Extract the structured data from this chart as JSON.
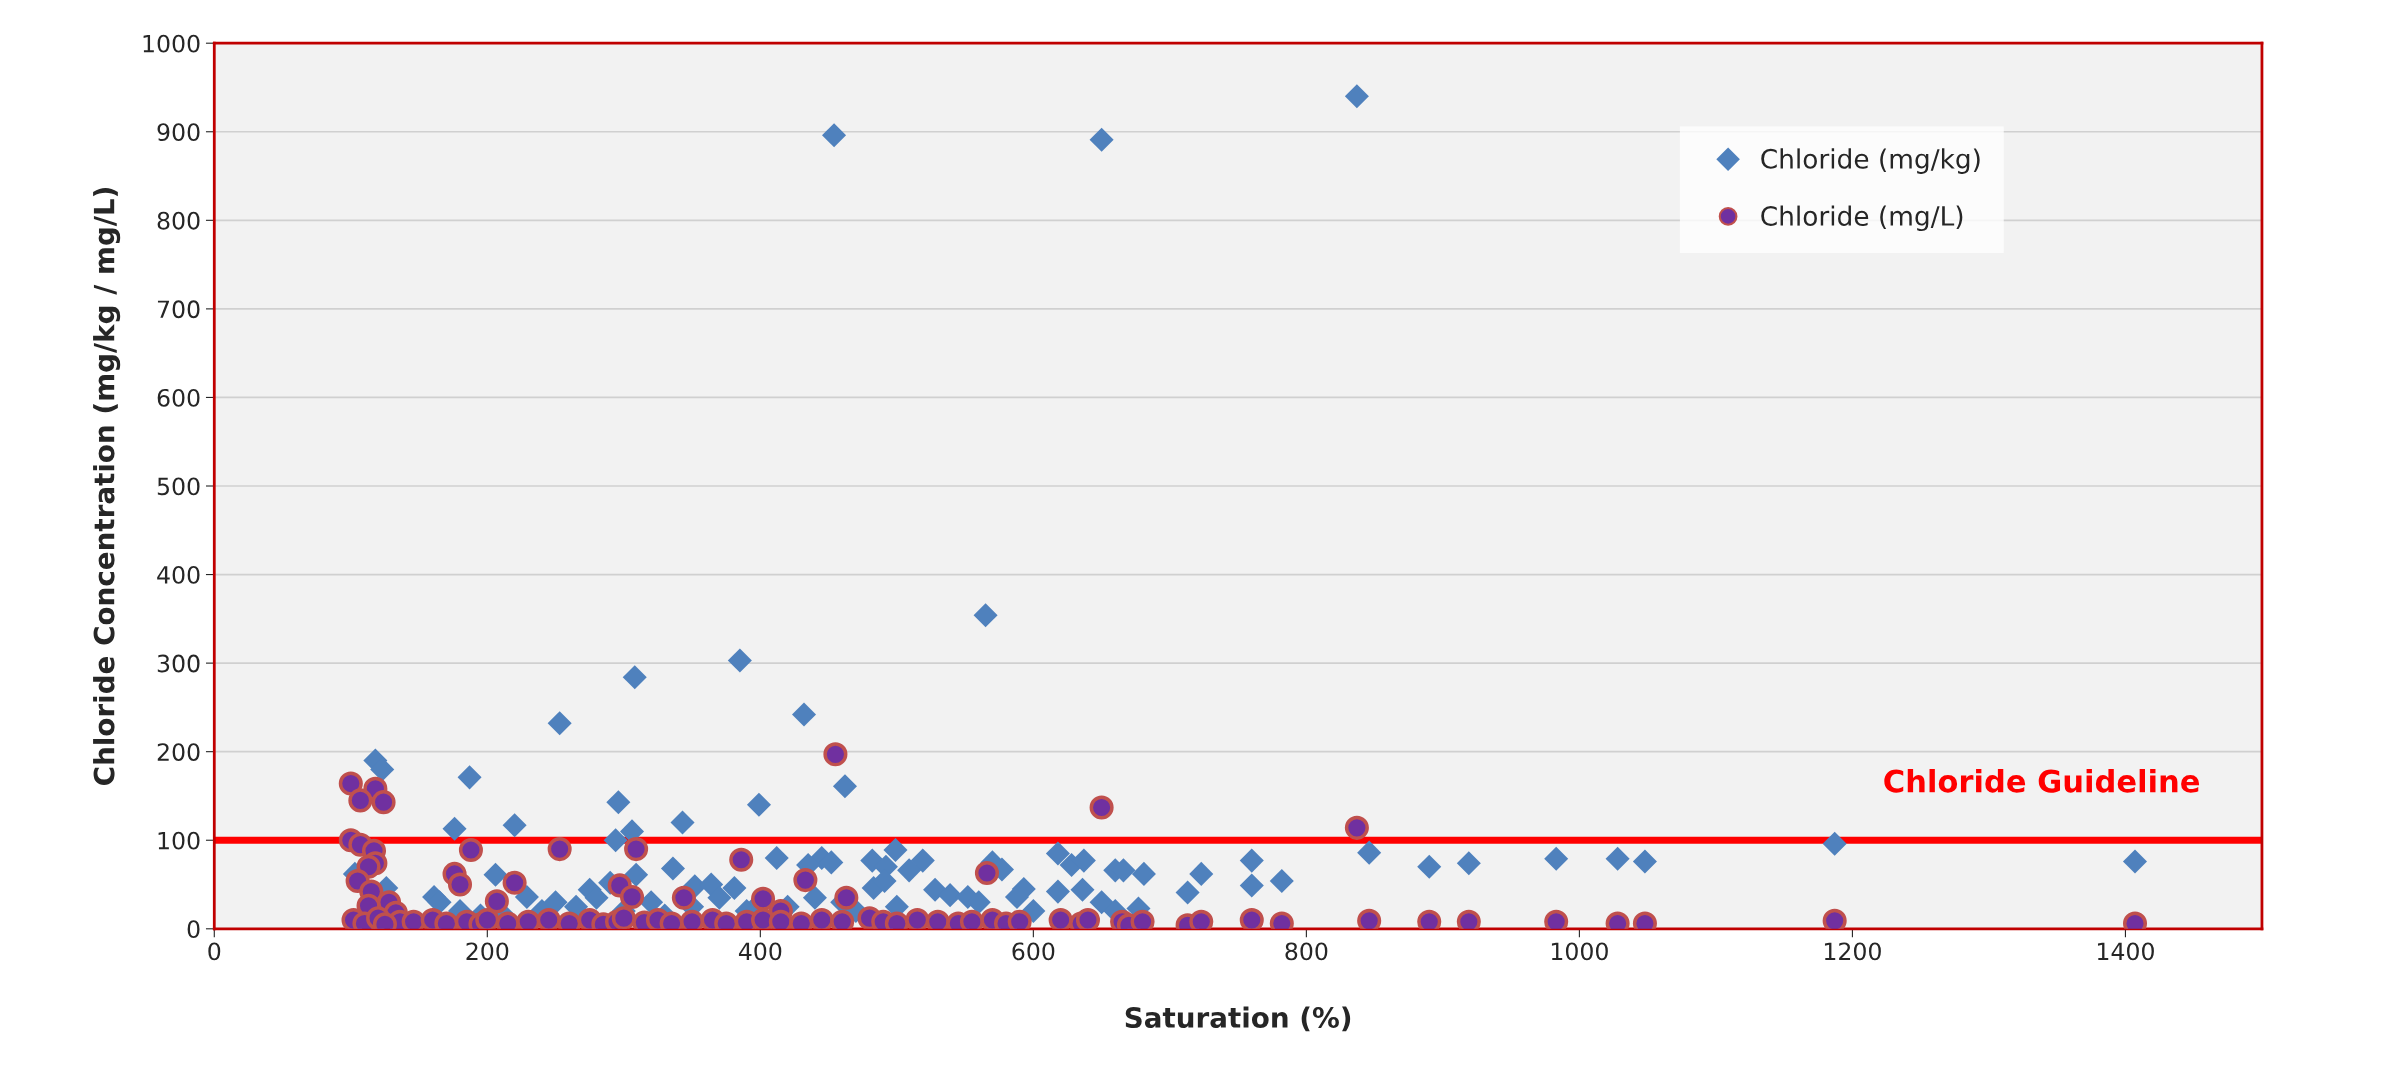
{
  "chart_data": {
    "type": "scatter",
    "xlabel": "Saturation (%)",
    "ylabel": "Chloride Concentration (mg/kg / mg/L)",
    "xlim": [
      0,
      1500
    ],
    "xticks": [
      0,
      200,
      400,
      600,
      800,
      1000,
      1200,
      1400
    ],
    "ylim": [
      0,
      1000
    ],
    "yticks": [
      0,
      100,
      200,
      300,
      400,
      500,
      600,
      700,
      800,
      900,
      1000
    ],
    "grid": "y",
    "legend": "top right",
    "ref_lines": [
      {
        "axis": "y",
        "value": 100,
        "label": "Chloride Guideline",
        "color": "#ff0000"
      }
    ],
    "series": [
      {
        "name": "Chloride (mg/kg)",
        "color": "#4f81bd",
        "marker": "diamond",
        "x": [
          118,
          123,
          187,
          253,
          296,
          343,
          399,
          176,
          220,
          294,
          306,
          206,
          336,
          309,
          126,
          161,
          103,
          275,
          290,
          352,
          364,
          381,
          229,
          454,
          650,
          837,
          565,
          308,
          385,
          432,
          462,
          412,
          445,
          452,
          435,
          482,
          499,
          492,
          519,
          509,
          483,
          491,
          528,
          539,
          552,
          570,
          577,
          593,
          588,
          618,
          628,
          637,
          618,
          636,
          660,
          666,
          681,
          677,
          713,
          723,
          760,
          760,
          782,
          846,
          890,
          919,
          983,
          1028,
          1048,
          1187,
          1407,
          165,
          180,
          195,
          210,
          240,
          250,
          265,
          280,
          300,
          320,
          330,
          350,
          370,
          390,
          400,
          420,
          440,
          460,
          470,
          500,
          560,
          600,
          650,
          660
        ],
        "values": [
          190,
          180,
          171,
          232,
          143,
          120,
          140,
          113,
          117,
          100,
          110,
          61,
          68,
          61,
          46,
          36,
          62,
          44,
          52,
          48,
          50,
          46,
          36,
          896,
          891,
          940,
          354,
          284,
          303,
          242,
          161,
          80,
          80,
          75,
          72,
          77,
          89,
          70,
          77,
          66,
          46,
          54,
          44,
          38,
          36,
          75,
          67,
          45,
          36,
          85,
          72,
          77,
          42,
          44,
          66,
          66,
          62,
          23,
          41,
          62,
          77,
          49,
          54,
          86,
          70,
          74,
          79,
          79,
          76,
          96,
          76,
          30,
          20,
          15,
          18,
          20,
          30,
          25,
          35,
          20,
          30,
          15,
          25,
          35,
          20,
          30,
          25,
          35,
          30,
          20,
          25,
          30,
          20,
          30,
          20
        ]
      },
      {
        "name": "Chloride (mg/L)",
        "color": "#7030a0",
        "marker": "circle",
        "x": [
          100,
          118,
          107,
          124,
          100,
          107,
          117,
          118,
          113,
          105,
          115,
          113,
          128,
          133,
          136,
          146,
          188,
          176,
          180,
          253,
          309,
          386,
          220,
          207,
          297,
          306,
          344,
          455,
          650,
          837,
          566,
          402,
          433,
          463,
          415,
          102,
          110,
          120,
          125,
          160,
          170,
          185,
          195,
          200,
          215,
          230,
          245,
          260,
          275,
          285,
          295,
          300,
          315,
          325,
          335,
          350,
          365,
          375,
          390,
          402,
          415,
          430,
          445,
          460,
          480,
          490,
          500,
          515,
          530,
          545,
          555,
          570,
          580,
          590,
          620,
          635,
          640,
          665,
          670,
          680,
          713,
          723,
          760,
          782,
          846,
          890,
          919,
          983,
          1028,
          1048,
          1187,
          1407
        ],
        "values": [
          164,
          158,
          145,
          143,
          100,
          95,
          88,
          74,
          70,
          54,
          42,
          26,
          30,
          18,
          8,
          8,
          89,
          62,
          50,
          90,
          90,
          78,
          52,
          31,
          49,
          36,
          35,
          197,
          137,
          114,
          63,
          34,
          55,
          35,
          20,
          10,
          6,
          12,
          5,
          10,
          6,
          8,
          5,
          10,
          6,
          8,
          10,
          6,
          10,
          5,
          8,
          12,
          7,
          10,
          6,
          8,
          10,
          6,
          8,
          10,
          8,
          6,
          10,
          8,
          12,
          8,
          6,
          10,
          8,
          6,
          8,
          10,
          6,
          8,
          10,
          6,
          10,
          8,
          4,
          8,
          4,
          8,
          10,
          6,
          9,
          8,
          8,
          8,
          6,
          6,
          9,
          6
        ]
      }
    ]
  }
}
